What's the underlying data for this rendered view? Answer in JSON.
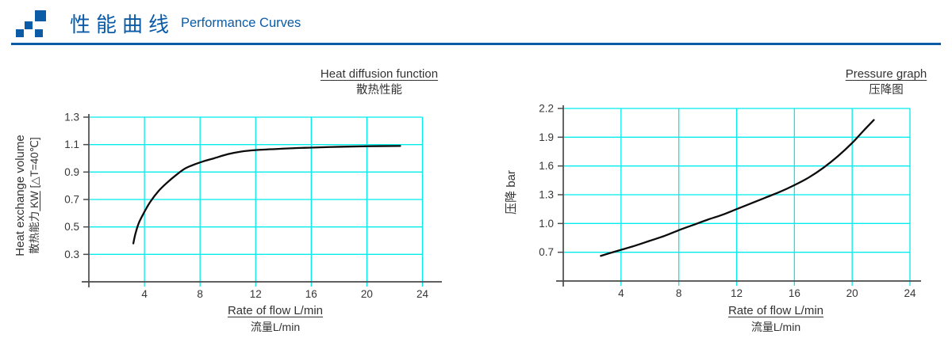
{
  "header": {
    "title_zh": "性能曲线",
    "title_en": "Performance Curves"
  },
  "colors": {
    "accent_blue": "#0B5BA7",
    "grid_cyan": "#00ECEC",
    "axis_gray": "#4A4A4A",
    "curve_black": "#0B0B0B",
    "text_dark": "#363636"
  },
  "chart_data": [
    {
      "type": "line",
      "title": "Heat diffusion function",
      "title_zh": "散热性能",
      "xlabel": "Rate of flow L/min",
      "xlabel_zh": "流量L/min",
      "ylabel_line1": "Heat exchange volume",
      "ylabel_line2_prefix": "散热能力",
      "ylabel_line2_underlined": " KW",
      "ylabel_line2_suffix": " [△T=40℃]",
      "xlim": [
        0,
        24.6
      ],
      "ylim": [
        0.1,
        1.3
      ],
      "xticks": [
        4,
        8,
        12,
        16,
        20,
        24
      ],
      "yticks": [
        0.3,
        0.5,
        0.7,
        0.9,
        1.1,
        1.3
      ],
      "grid": true,
      "legend_position": "none",
      "points": [
        [
          3.2,
          0.38
        ],
        [
          3.35,
          0.45
        ],
        [
          3.6,
          0.53
        ],
        [
          4.0,
          0.61
        ],
        [
          4.4,
          0.68
        ],
        [
          5.0,
          0.76
        ],
        [
          5.6,
          0.82
        ],
        [
          6.3,
          0.88
        ],
        [
          7.0,
          0.93
        ],
        [
          8.0,
          0.97
        ],
        [
          9.0,
          1.0
        ],
        [
          10.0,
          1.03
        ],
        [
          11.0,
          1.05
        ],
        [
          12.0,
          1.06
        ],
        [
          13.5,
          1.068
        ],
        [
          15.0,
          1.075
        ],
        [
          16.0,
          1.078
        ],
        [
          18.0,
          1.084
        ],
        [
          20.0,
          1.088
        ],
        [
          22.4,
          1.09
        ]
      ]
    },
    {
      "type": "line",
      "title": "Pressure graph",
      "title_zh": "压降图",
      "xlabel": "Rate of flow L/min",
      "xlabel_zh": "流量L/min",
      "ylabel_line1": "压降 bar",
      "xlim": [
        0,
        24
      ],
      "ylim": [
        0.4,
        2.2
      ],
      "xticks": [
        4,
        8,
        12,
        16,
        20,
        24
      ],
      "yticks": [
        0.7,
        1.0,
        1.3,
        1.6,
        1.9,
        2.2
      ],
      "grid": true,
      "legend_position": "none",
      "points": [
        [
          2.6,
          0.662
        ],
        [
          3.2,
          0.69
        ],
        [
          4.0,
          0.725
        ],
        [
          5.0,
          0.77
        ],
        [
          6.0,
          0.82
        ],
        [
          7.0,
          0.87
        ],
        [
          8.0,
          0.93
        ],
        [
          9.0,
          0.985
        ],
        [
          10.0,
          1.04
        ],
        [
          11.0,
          1.09
        ],
        [
          12.0,
          1.15
        ],
        [
          13.0,
          1.21
        ],
        [
          14.0,
          1.27
        ],
        [
          15.0,
          1.33
        ],
        [
          16.0,
          1.4
        ],
        [
          17.0,
          1.48
        ],
        [
          18.0,
          1.58
        ],
        [
          19.0,
          1.7
        ],
        [
          20.0,
          1.84
        ],
        [
          20.8,
          1.97
        ],
        [
          21.5,
          2.08
        ]
      ]
    }
  ]
}
